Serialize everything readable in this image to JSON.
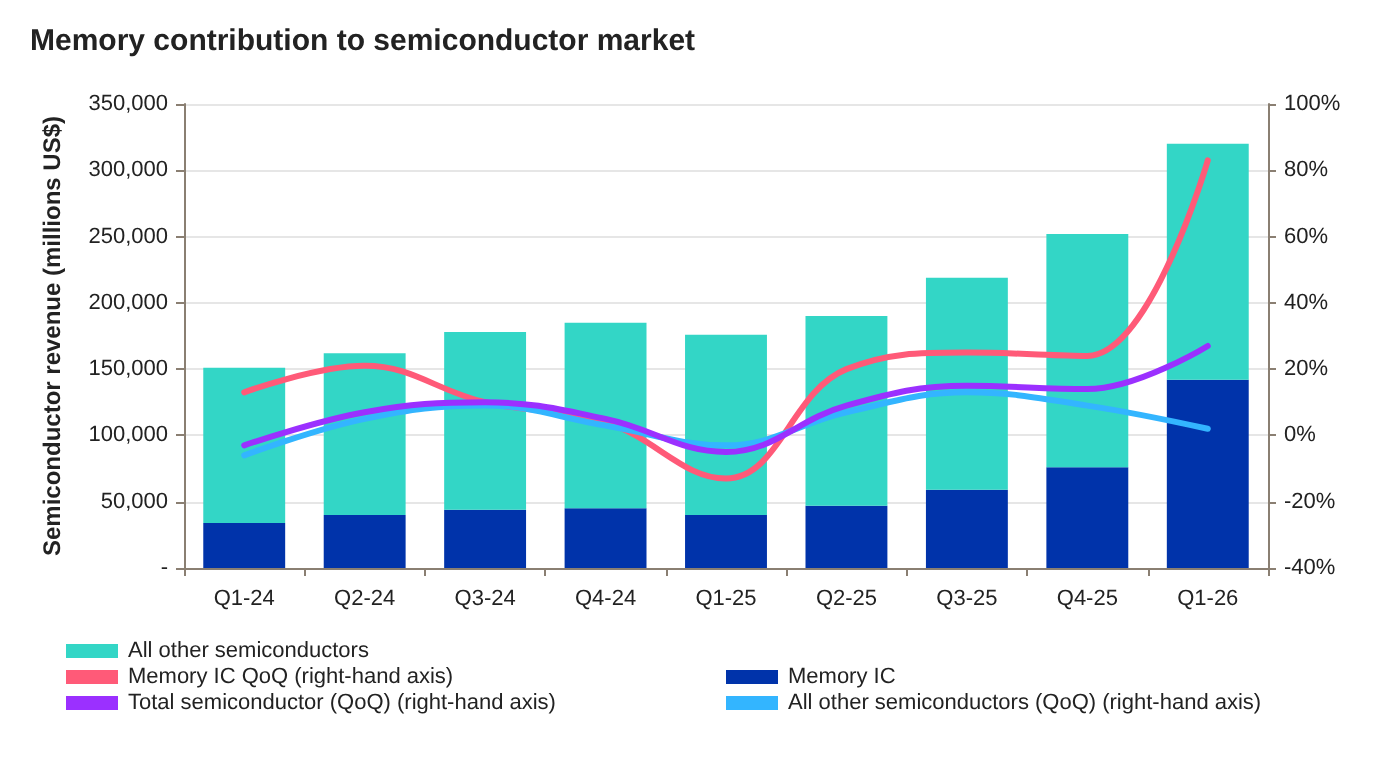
{
  "chart_data": {
    "type": "bar",
    "title": "Memory contribution to semiconductor market",
    "ylabel": "Semiconductor revenue (millions US$)",
    "stacked": true,
    "categories": [
      "Q1-24",
      "Q2-24",
      "Q3-24",
      "Q4-24",
      "Q1-25",
      "Q2-25",
      "Q3-25",
      "Q4-25",
      "Q1-26"
    ],
    "series": [
      {
        "name": "Memory IC",
        "color": "#0033aa",
        "values": [
          34000,
          40000,
          44000,
          45000,
          40000,
          47000,
          59000,
          76000,
          142000
        ]
      },
      {
        "name": "All other semiconductors",
        "color": "#33d6c6",
        "values": [
          117000,
          122000,
          134000,
          140000,
          136000,
          143000,
          160000,
          176000,
          178000
        ]
      },
      {
        "name": "Memory IC QoQ (right-hand axis)",
        "type": "line",
        "axis": "y2",
        "color": "#ff5a78",
        "values": [
          13,
          21,
          10,
          4,
          -13,
          20,
          25,
          24,
          83
        ]
      },
      {
        "name": "All other semiconductors (QoQ) (right-hand axis)",
        "type": "line",
        "axis": "y2",
        "color": "#33b5ff",
        "values": [
          -6,
          5,
          9,
          3,
          -3,
          7,
          13,
          9,
          2
        ]
      },
      {
        "name": "Total semiconductor (QoQ) (right-hand axis)",
        "type": "line",
        "axis": "y2",
        "color": "#9b30ff",
        "values": [
          -3,
          7,
          10,
          5,
          -5,
          9,
          15,
          14,
          27
        ]
      }
    ],
    "ylim": [
      0,
      350000
    ],
    "yticks": [
      {
        "value": 0,
        "label": "-"
      },
      {
        "value": 50000,
        "label": "50,000"
      },
      {
        "value": 100000,
        "label": "100,000"
      },
      {
        "value": 150000,
        "label": "150,000"
      },
      {
        "value": 200000,
        "label": "200,000"
      },
      {
        "value": 250000,
        "label": "250,000"
      },
      {
        "value": 300000,
        "label": "300,000"
      },
      {
        "value": 350000,
        "label": "350,000"
      }
    ],
    "y2lim": [
      -40,
      100
    ],
    "y2ticks": [
      {
        "value": -40,
        "label": "-40%"
      },
      {
        "value": -20,
        "label": "-20%"
      },
      {
        "value": 0,
        "label": "0%"
      },
      {
        "value": 20,
        "label": "20%"
      },
      {
        "value": 40,
        "label": "40%"
      },
      {
        "value": 60,
        "label": "60%"
      },
      {
        "value": 80,
        "label": "80%"
      },
      {
        "value": 100,
        "label": "100%"
      }
    ],
    "grid": "y",
    "legend": "bottom",
    "marker": "none"
  }
}
